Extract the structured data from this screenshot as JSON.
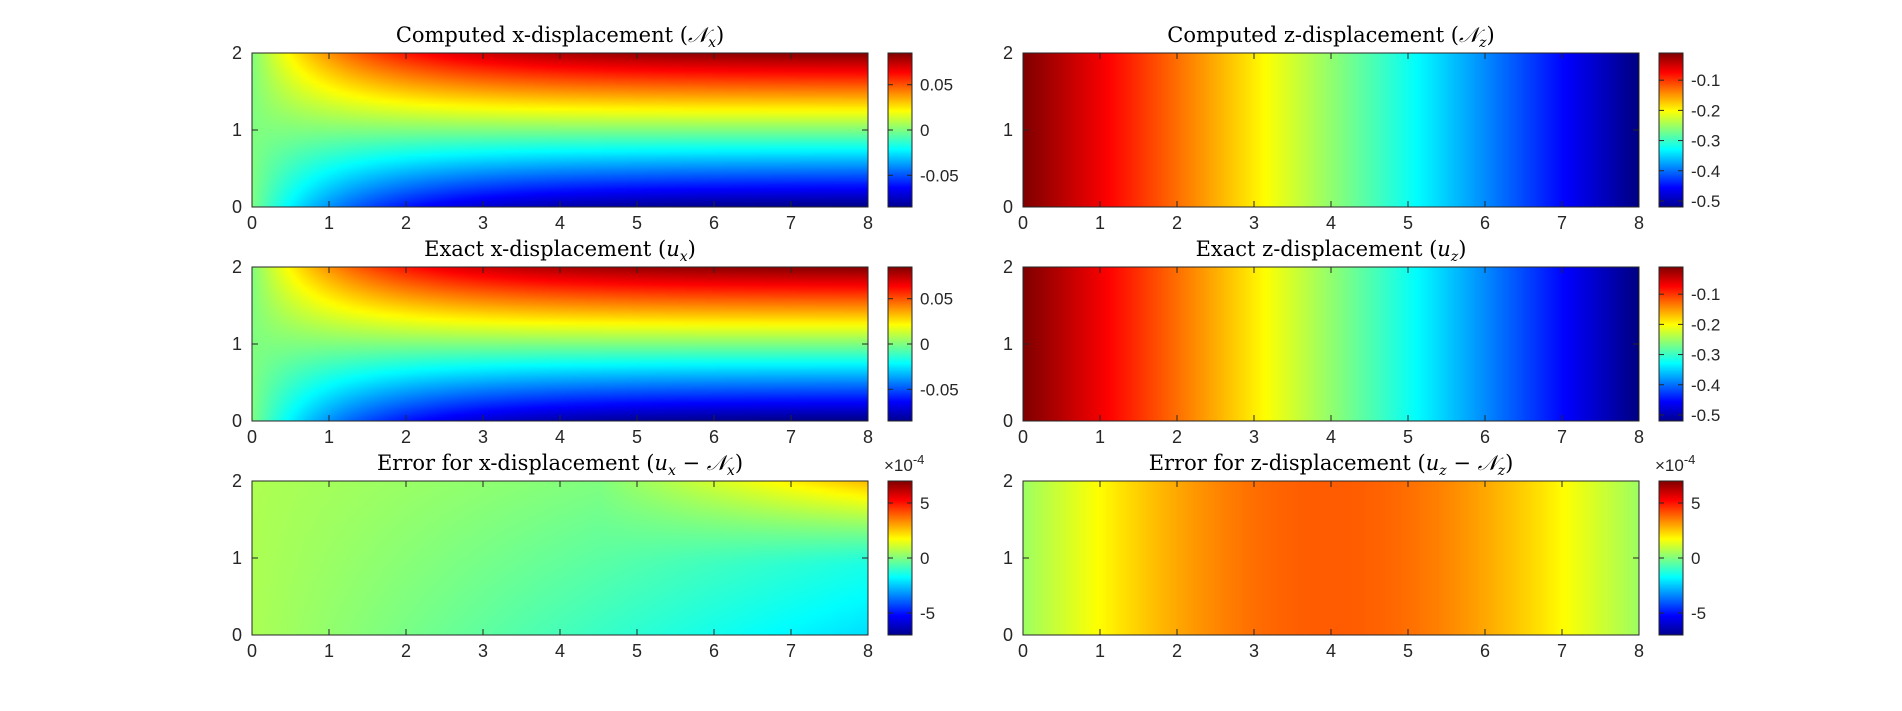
{
  "colors": {
    "colormap": "jet",
    "axis": "#262626",
    "background": "#ffffff"
  },
  "chart_data": [
    {
      "type": "heatmap",
      "title": "Computed x-displacement (𝒩x)",
      "title_parts": {
        "text": "Computed x-displacement (",
        "math_main": "𝒩",
        "math_sub": "x",
        "close": ")"
      },
      "x_ticks": [
        "0",
        "1",
        "2",
        "3",
        "4",
        "5",
        "6",
        "7",
        "8"
      ],
      "y_ticks": [
        "0",
        "1",
        "2"
      ],
      "xlim": [
        0,
        8
      ],
      "ylim": [
        0,
        2
      ],
      "field": "comp_x",
      "clim": [
        -0.085,
        0.085
      ],
      "colorbar_ticks": [
        {
          "value": -0.05,
          "label": "-0.05"
        },
        {
          "value": 0,
          "label": "0"
        },
        {
          "value": 0.05,
          "label": "0.05"
        }
      ],
      "exponent_label": null
    },
    {
      "type": "heatmap",
      "title": "Computed z-displacement (𝒩z)",
      "title_parts": {
        "text": "Computed z-displacement (",
        "math_main": "𝒩",
        "math_sub": "z",
        "close": ")"
      },
      "x_ticks": [
        "0",
        "1",
        "2",
        "3",
        "4",
        "5",
        "6",
        "7",
        "8"
      ],
      "y_ticks": [
        "0",
        "1",
        "2"
      ],
      "xlim": [
        0,
        8
      ],
      "ylim": [
        0,
        2
      ],
      "field": "comp_z",
      "clim": [
        -0.52,
        -0.01
      ],
      "colorbar_ticks": [
        {
          "value": -0.5,
          "label": "-0.5"
        },
        {
          "value": -0.4,
          "label": "-0.4"
        },
        {
          "value": -0.3,
          "label": "-0.3"
        },
        {
          "value": -0.2,
          "label": "-0.2"
        },
        {
          "value": -0.1,
          "label": "-0.1"
        }
      ],
      "exponent_label": null
    },
    {
      "type": "heatmap",
      "title": "Exact x-displacement (ux)",
      "title_parts": {
        "text": "Exact x-displacement (",
        "math_main": "u",
        "math_sub": "x",
        "close": ")"
      },
      "x_ticks": [
        "0",
        "1",
        "2",
        "3",
        "4",
        "5",
        "6",
        "7",
        "8"
      ],
      "y_ticks": [
        "0",
        "1",
        "2"
      ],
      "xlim": [
        0,
        8
      ],
      "ylim": [
        0,
        2
      ],
      "field": "exact_x",
      "clim": [
        -0.085,
        0.085
      ],
      "colorbar_ticks": [
        {
          "value": -0.05,
          "label": "-0.05"
        },
        {
          "value": 0,
          "label": "0"
        },
        {
          "value": 0.05,
          "label": "0.05"
        }
      ],
      "exponent_label": null
    },
    {
      "type": "heatmap",
      "title": "Exact z-displacement (uz)",
      "title_parts": {
        "text": "Exact z-displacement (",
        "math_main": "u",
        "math_sub": "z",
        "close": ")"
      },
      "x_ticks": [
        "0",
        "1",
        "2",
        "3",
        "4",
        "5",
        "6",
        "7",
        "8"
      ],
      "y_ticks": [
        "0",
        "1",
        "2"
      ],
      "xlim": [
        0,
        8
      ],
      "ylim": [
        0,
        2
      ],
      "field": "exact_z",
      "clim": [
        -0.52,
        -0.01
      ],
      "colorbar_ticks": [
        {
          "value": -0.5,
          "label": "-0.5"
        },
        {
          "value": -0.4,
          "label": "-0.4"
        },
        {
          "value": -0.3,
          "label": "-0.3"
        },
        {
          "value": -0.2,
          "label": "-0.2"
        },
        {
          "value": -0.1,
          "label": "-0.1"
        }
      ],
      "exponent_label": null
    },
    {
      "type": "heatmap",
      "title": "Error for x-displacement (ux − 𝒩x)",
      "title_parts": {
        "text": "Error for x-displacement (",
        "math_main": "u",
        "math_sub": "x",
        "minus": " − ",
        "math_main2": "𝒩",
        "math_sub2": "x",
        "close": ")"
      },
      "x_ticks": [
        "0",
        "1",
        "2",
        "3",
        "4",
        "5",
        "6",
        "7",
        "8"
      ],
      "y_ticks": [
        "0",
        "1",
        "2"
      ],
      "xlim": [
        0,
        8
      ],
      "ylim": [
        0,
        2
      ],
      "field": "err_x",
      "clim": [
        -7,
        7
      ],
      "colorbar_ticks": [
        {
          "value": -5,
          "label": "-5"
        },
        {
          "value": 0,
          "label": "0"
        },
        {
          "value": 5,
          "label": "5"
        }
      ],
      "exponent_label": {
        "base": "×10",
        "exp": "-4"
      }
    },
    {
      "type": "heatmap",
      "title": "Error for z-displacement (uz − 𝒩z)",
      "title_parts": {
        "text": "Error for z-displacement (",
        "math_main": "u",
        "math_sub": "z",
        "minus": " − ",
        "math_main2": "𝒩",
        "math_sub2": "z",
        "close": ")"
      },
      "x_ticks": [
        "0",
        "1",
        "2",
        "3",
        "4",
        "5",
        "6",
        "7",
        "8"
      ],
      "y_ticks": [
        "0",
        "1",
        "2"
      ],
      "xlim": [
        0,
        8
      ],
      "ylim": [
        0,
        2
      ],
      "field": "err_z",
      "clim": [
        -7,
        7
      ],
      "colorbar_ticks": [
        {
          "value": -5,
          "label": "-5"
        },
        {
          "value": 0,
          "label": "0"
        },
        {
          "value": 5,
          "label": "5"
        }
      ],
      "exponent_label": {
        "base": "×10",
        "exp": "-4"
      }
    }
  ]
}
